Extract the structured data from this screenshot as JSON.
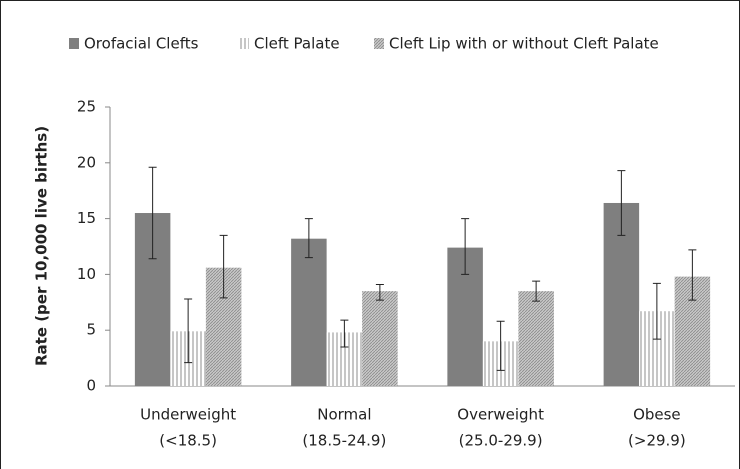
{
  "chart_data": {
    "type": "bar",
    "y_label": "Rate (per 10,000 live births)",
    "categories": [
      [
        "Underweight",
        "(<18.5)"
      ],
      [
        "Normal",
        "(18.5-24.9)"
      ],
      [
        "Overweight",
        "(25.0-29.9)"
      ],
      [
        "Obese",
        "(>29.9)"
      ]
    ],
    "series": [
      {
        "name": "Orofacial Clefts",
        "color": "#7f7f7f",
        "pattern": "solid",
        "values": [
          15.5,
          13.2,
          12.4,
          16.4
        ],
        "ci_low": [
          11.4,
          11.5,
          10.0,
          13.5
        ],
        "ci_high": [
          19.6,
          15.0,
          15.0,
          19.3
        ]
      },
      {
        "name": "Cleft Palate",
        "color": "#9a9a9a",
        "pattern": "vertical",
        "values": [
          4.9,
          4.8,
          4.0,
          6.7
        ],
        "ci_low": [
          2.1,
          3.5,
          1.4,
          4.2
        ],
        "ci_high": [
          7.8,
          5.9,
          5.8,
          9.2
        ]
      },
      {
        "name": "Cleft Lip with or without Cleft Palate",
        "color": "#b4b4b4",
        "pattern": "diagonal",
        "values": [
          10.6,
          8.5,
          8.5,
          9.8
        ],
        "ci_low": [
          7.9,
          7.7,
          7.6,
          7.7
        ],
        "ci_high": [
          13.5,
          9.1,
          9.4,
          12.2
        ]
      }
    ],
    "ylim": [
      0,
      25
    ],
    "yticks": [
      0,
      5,
      10,
      15,
      20,
      25
    ],
    "grid": false,
    "legend": "top"
  }
}
